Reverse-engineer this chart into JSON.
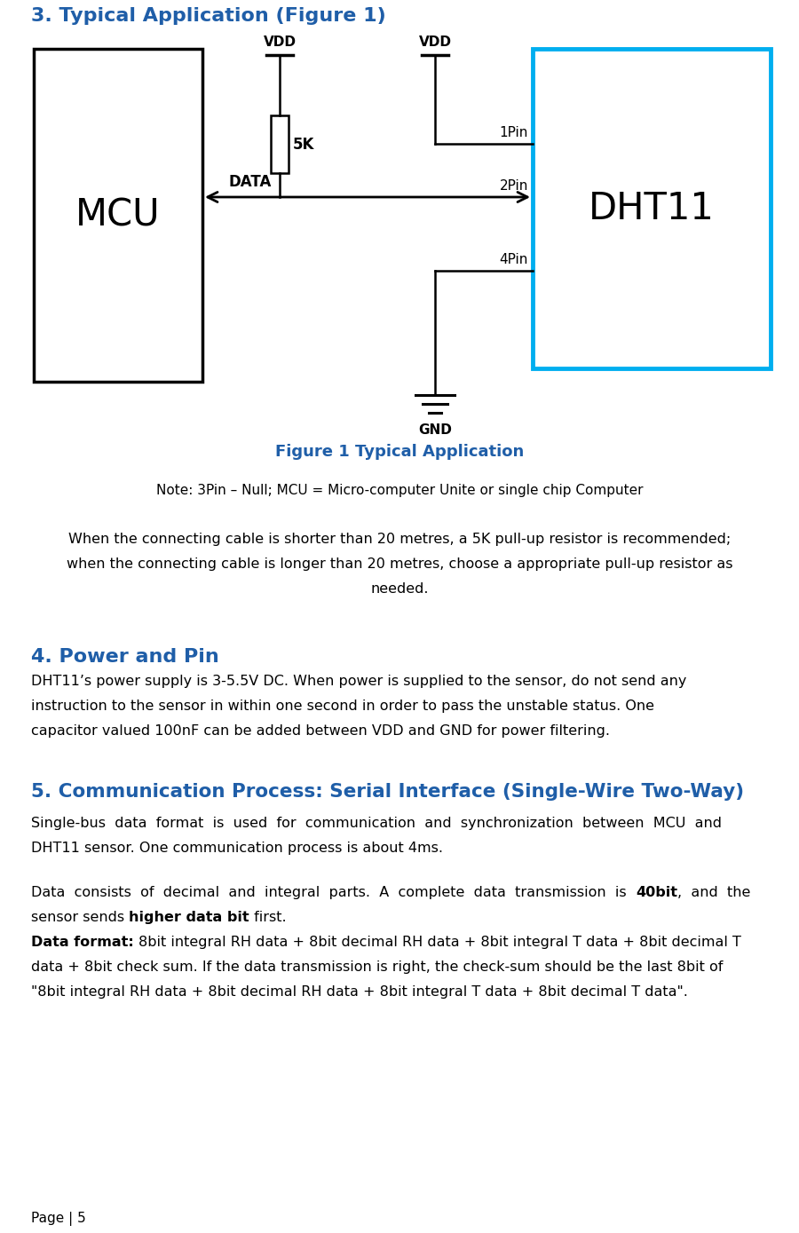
{
  "title_section3": "3. Typical Application (Figure 1)",
  "title_section4": "4. Power and Pin",
  "title_section5": "5. Communication Process: Serial Interface (Single-Wire Two-Way)",
  "figure_caption": "Figure 1 Typical Application",
  "note_text": "Note: 3Pin – Null; MCU = Micro-computer Unite or single chip Computer",
  "para1_lines": [
    "When the connecting cable is shorter than 20 metres, a 5K pull-up resistor is recommended;",
    "when the connecting cable is longer than 20 metres, choose a appropriate pull-up resistor as",
    "needed."
  ],
  "para4_lines": [
    "DHT11’s power supply is 3-5.5V DC. When power is supplied to the sensor, do not send any",
    "instruction to the sensor in within one second in order to pass the unstable status. One",
    "capacitor valued 100nF can be added between VDD and GND for power filtering."
  ],
  "para5a_lines": [
    "Single-bus  data  format  is  used  for  communication  and  synchronization  between  MCU  and",
    "DHT11 sensor. One communication process is about 4ms."
  ],
  "para5b_line1_pre": "Data  consists  of  decimal  and  integral  parts.  A  complete  data  transmission  is  ",
  "para5b_line1_bold": "40bit",
  "para5b_line1_post": ",  and  the",
  "para5b_line2_pre": "sensor sends ",
  "para5b_line2_bold": "higher data bit",
  "para5b_line2_post": " first.",
  "para5c_label": "Data format: ",
  "para5c_line1": "8bit integral RH data + 8bit decimal RH data + 8bit integral T data + 8bit decimal T",
  "para5c_lines": [
    "data + 8bit check sum. If the data transmission is right, the check-sum should be the last 8bit of",
    "\"8bit integral RH data + 8bit decimal RH data + 8bit integral T data + 8bit decimal T data\"."
  ],
  "page_label": "Page | 5",
  "blue_color": "#1F5EA8",
  "cyan_color": "#00AEEF",
  "black_color": "#000000",
  "bg_color": "#FFFFFF"
}
